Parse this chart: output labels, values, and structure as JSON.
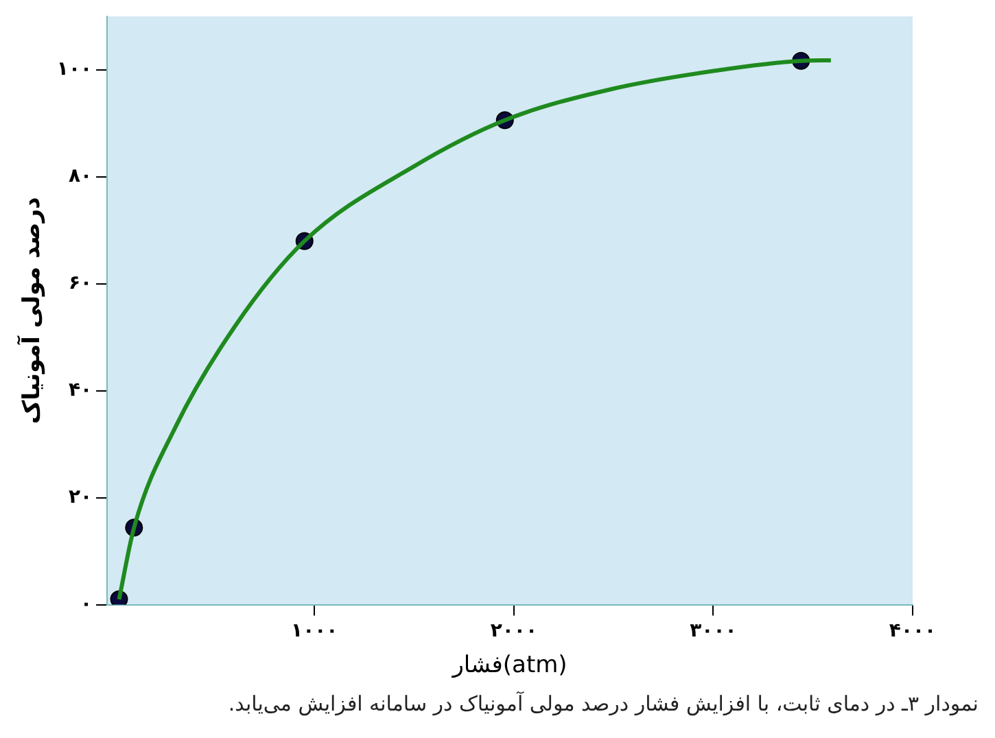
{
  "chart_data": {
    "type": "line",
    "xlabel": "فشار(atm)",
    "ylabel": "درصد مولی آمونیاک",
    "annotations": [
      "نمودار ۳ـ در دمای ثابت، با افزایش فشار درصد مولی آمونیاک در سامانه افزایش می‌یابد."
    ],
    "xlim": [
      -40,
      4000
    ],
    "ylim": [
      0,
      110
    ],
    "xticks": [
      {
        "value": 1000,
        "label": "۱۰۰۰"
      },
      {
        "value": 2000,
        "label": "۲۰۰۰"
      },
      {
        "value": 3000,
        "label": "۳۰۰۰"
      },
      {
        "value": 4000,
        "label": "۴۰۰۰"
      }
    ],
    "yticks": [
      {
        "value": 0,
        "label": "۰"
      },
      {
        "value": 20,
        "label": "۲۰"
      },
      {
        "value": 40,
        "label": "۴۰"
      },
      {
        "value": 60,
        "label": "۶۰"
      },
      {
        "value": 80,
        "label": "۸۰"
      },
      {
        "value": 100,
        "label": "۱۰۰"
      }
    ],
    "grid": false,
    "legend": false,
    "series": [
      {
        "type": "line",
        "marker": "none",
        "color": "#1f8a1f",
        "x": [
          20,
          95,
          300,
          600,
          950,
          1500,
          1955,
          2500,
          3000,
          3440,
          3590
        ],
        "values": [
          1,
          14.4,
          33,
          52,
          68,
          82,
          90.6,
          96.5,
          99.8,
          101.7,
          101.8
        ]
      },
      {
        "type": "scatter",
        "marker": "circle",
        "color": "#0a0a3c",
        "x": [
          20,
          95,
          950,
          1955,
          3440
        ],
        "values": [
          1,
          14.4,
          68,
          90.6,
          101.7
        ]
      }
    ]
  }
}
